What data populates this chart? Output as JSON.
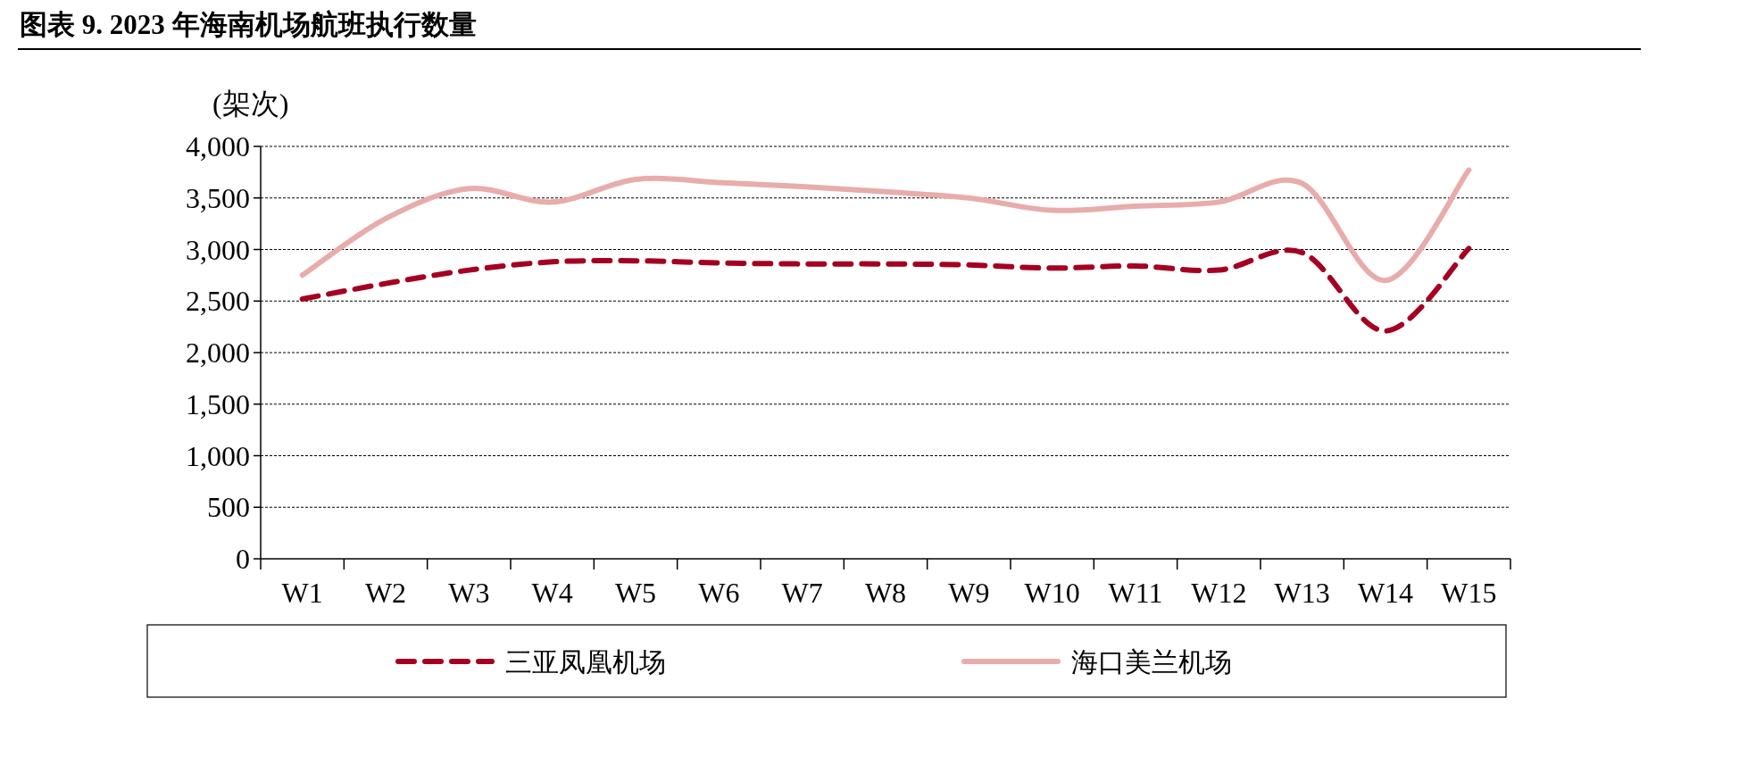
{
  "chart_data": {
    "type": "line",
    "title": "图表 9. 2023 年海南机场航班执行数量",
    "ylabel": "(架次)",
    "categories": [
      "W1",
      "W2",
      "W3",
      "W4",
      "W5",
      "W6",
      "W7",
      "W8",
      "W9",
      "W10",
      "W11",
      "W12",
      "W13",
      "W14",
      "W15"
    ],
    "series": [
      {
        "name": "三亚凤凰机场",
        "color": "#a50021",
        "line_style": "dashed",
        "values": [
          2520,
          2670,
          2800,
          2880,
          2890,
          2870,
          2860,
          2860,
          2850,
          2820,
          2840,
          2800,
          2970,
          2210,
          3010
        ]
      },
      {
        "name": "海口美兰机场",
        "color": "#e8acab",
        "line_style": "solid",
        "values": [
          2750,
          3300,
          3590,
          3460,
          3680,
          3650,
          3610,
          3560,
          3500,
          3380,
          3420,
          3460,
          3640,
          2700,
          3770
        ]
      }
    ],
    "ylim": [
      0,
      4000
    ],
    "yticks": [
      0,
      {
        "value": 500,
        "label": "500"
      },
      {
        "value": 1000,
        "label": "1,000"
      },
      {
        "value": 1500,
        "label": "1,500"
      },
      {
        "value": 2000,
        "label": "2,000"
      },
      {
        "value": 2500,
        "label": "2,500"
      },
      {
        "value": 3000,
        "label": "3,000"
      },
      {
        "value": 3500,
        "label": "3,500"
      },
      {
        "value": 4000,
        "label": "4,000"
      }
    ],
    "grid": "y",
    "legend": "bottom",
    "marker": "none"
  }
}
